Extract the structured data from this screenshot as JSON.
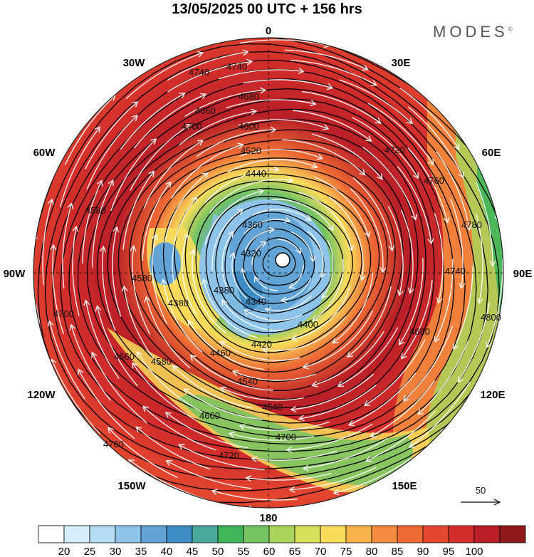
{
  "title": "13/05/2025  00 UTC  + 156 hrs",
  "logo": "MODES",
  "logo_mark": "©",
  "longitude_labels": [
    {
      "text": "0",
      "lon": 0
    },
    {
      "text": "30E",
      "lon": 30
    },
    {
      "text": "60E",
      "lon": 60
    },
    {
      "text": "90E",
      "lon": 90
    },
    {
      "text": "120E",
      "lon": 120
    },
    {
      "text": "150E",
      "lon": 150
    },
    {
      "text": "180",
      "lon": 180
    },
    {
      "text": "150W",
      "lon": -150
    },
    {
      "text": "120W",
      "lon": -120
    },
    {
      "text": "90W",
      "lon": -90
    },
    {
      "text": "60W",
      "lon": -60
    },
    {
      "text": "30W",
      "lon": -30
    }
  ],
  "contour_labels": [
    "4740",
    "4740",
    "4680",
    "4660",
    "4700",
    "4600",
    "4520",
    "4440",
    "4360",
    "4320",
    "4340",
    "4380",
    "4420",
    "4460",
    "4400",
    "4540",
    "4580",
    "4660",
    "4700",
    "4720",
    "4760",
    "4780",
    "4800",
    "4760",
    "4740",
    "4720",
    "4700",
    "4680",
    "4660",
    "4640",
    "4580",
    "4380",
    "4580"
  ],
  "vector_reference": {
    "label": "50"
  },
  "colorbar": {
    "colors": [
      "#ffffff",
      "#d6eefb",
      "#b4dcf3",
      "#8fc4ea",
      "#62a4d6",
      "#3f8cc4",
      "#49a99a",
      "#40b65a",
      "#74c463",
      "#a9d55c",
      "#d6e05a",
      "#f8dc5c",
      "#f7b34b",
      "#f48e3e",
      "#ee6a35",
      "#e4482f",
      "#d22e2b",
      "#b81f27",
      "#8f1a1e"
    ],
    "labels": [
      "20",
      "25",
      "30",
      "35",
      "40",
      "45",
      "50",
      "55",
      "60",
      "65",
      "70",
      "75",
      "80",
      "85",
      "90",
      "95",
      "100"
    ]
  }
}
